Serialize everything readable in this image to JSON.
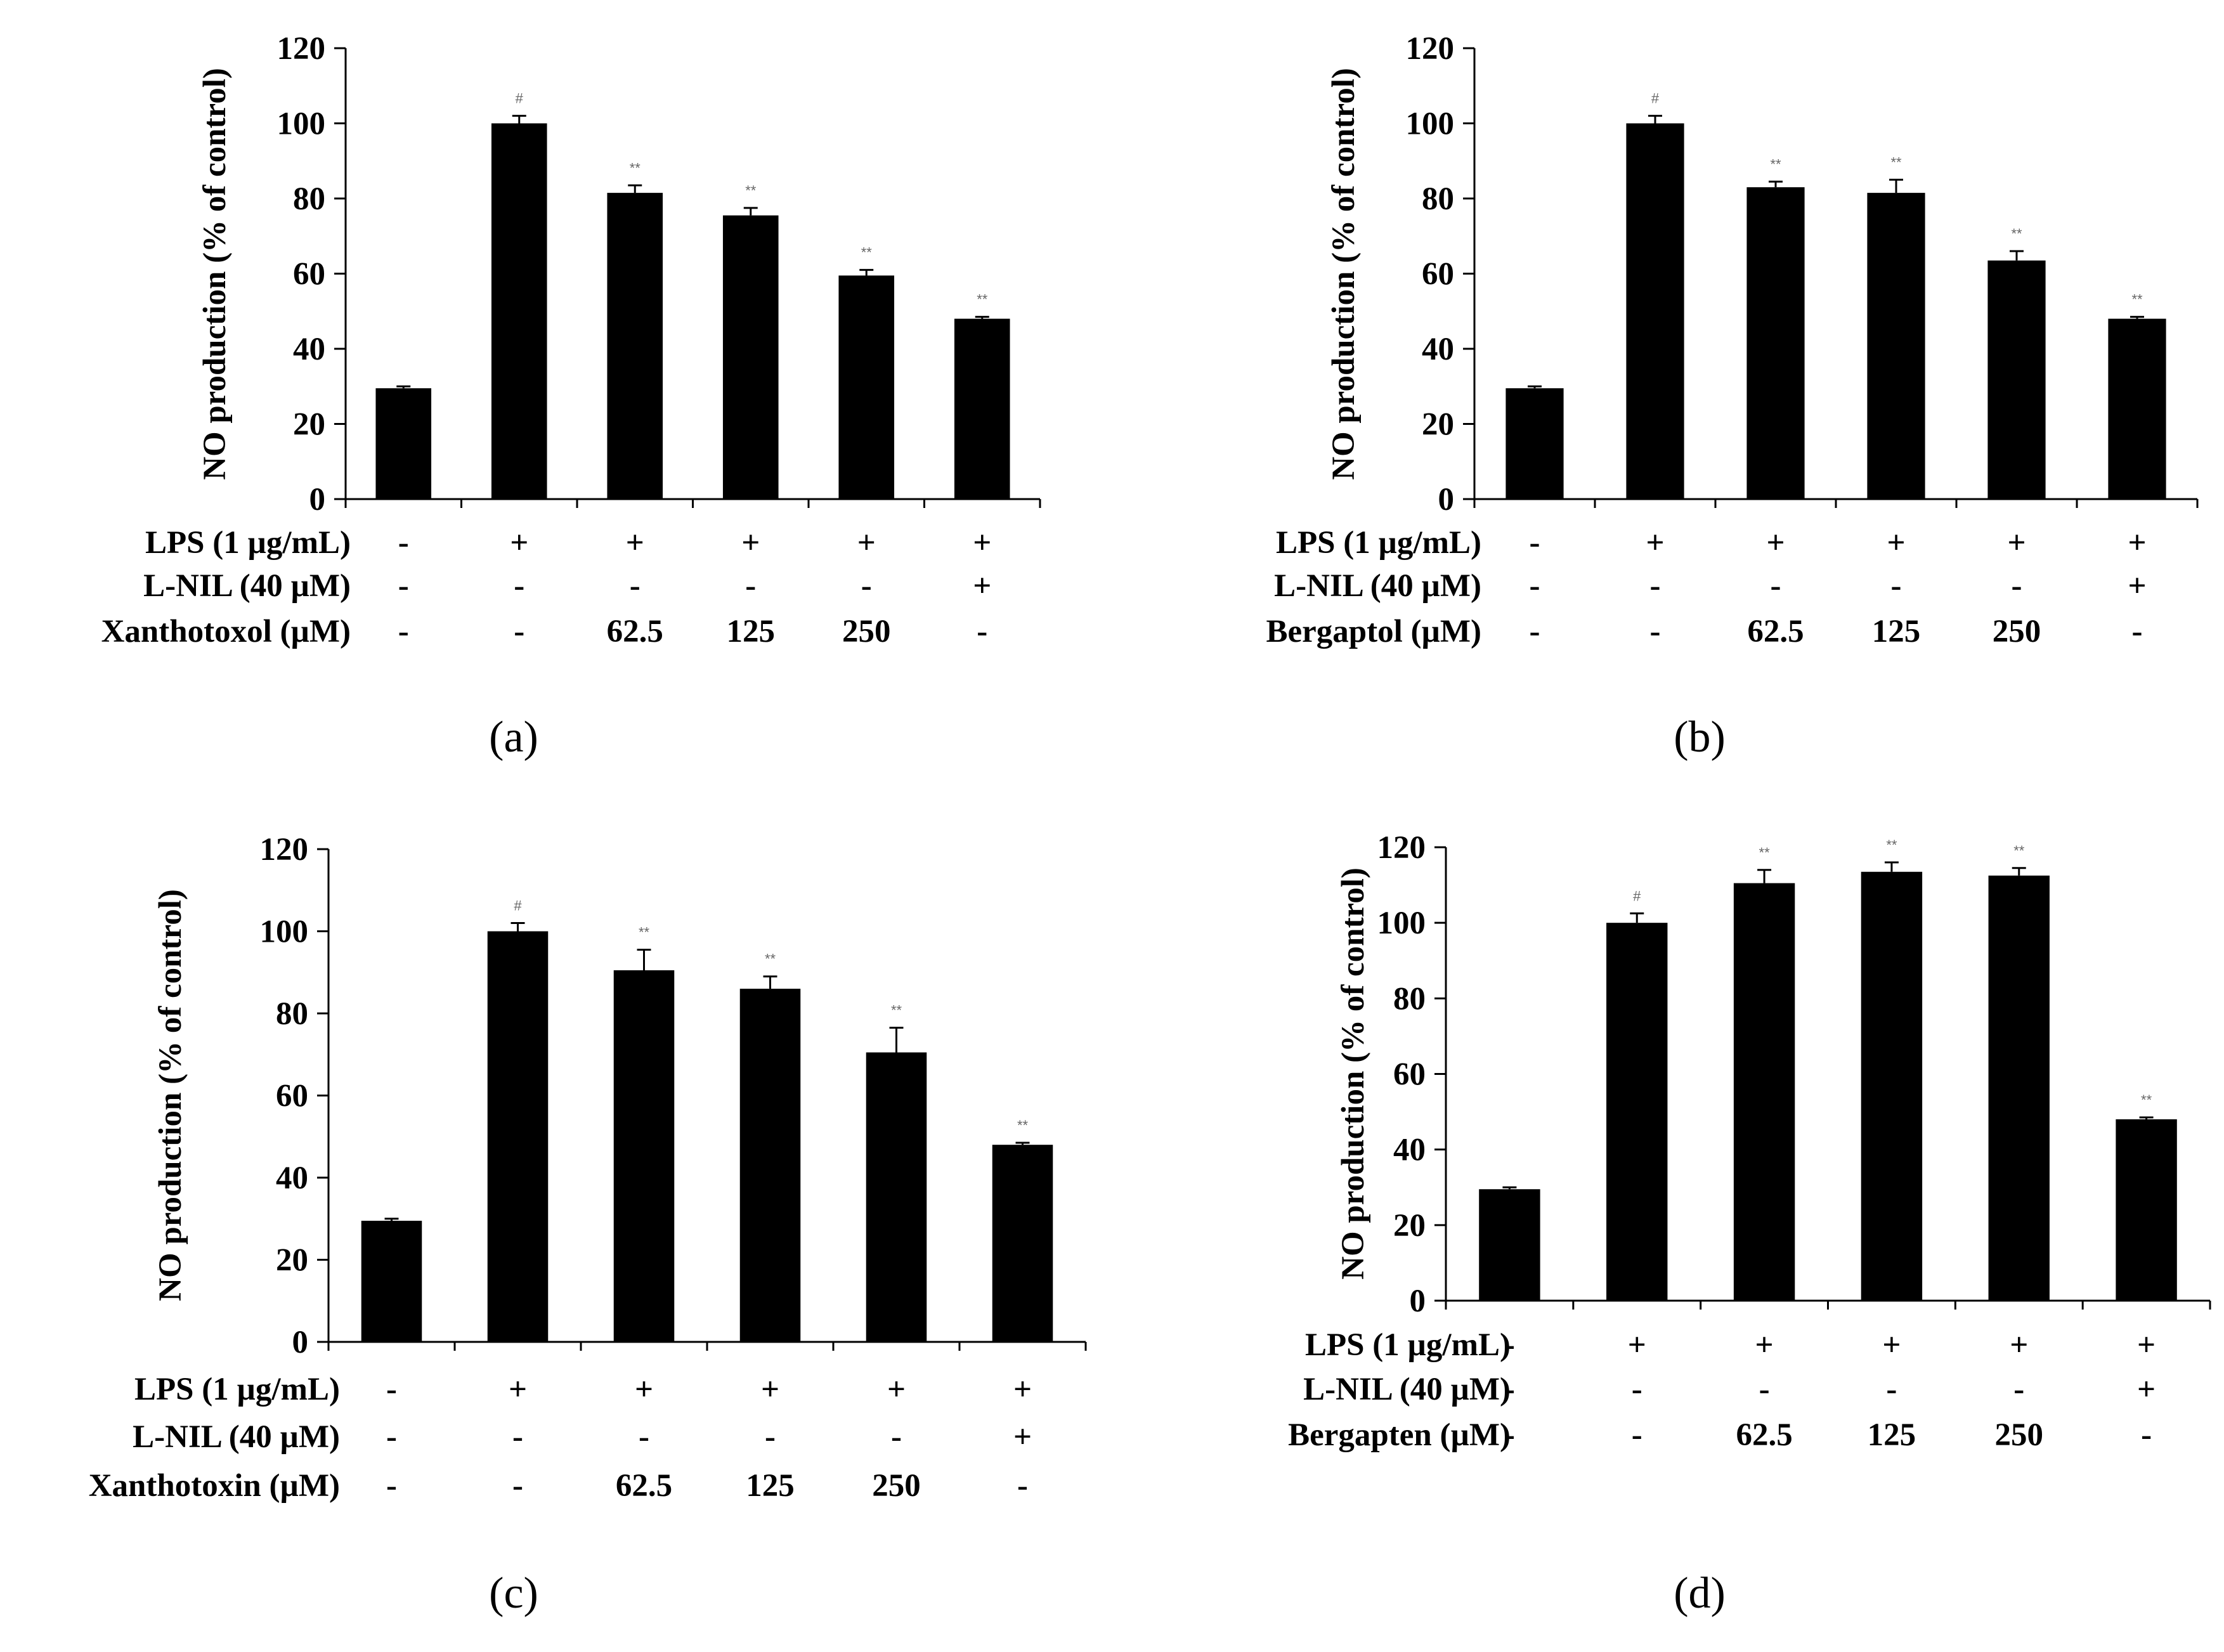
{
  "colors": {
    "bar": "#000000",
    "axis": "#000000",
    "annotation": "#666666",
    "background": "#ffffff"
  },
  "chart_data": [
    {
      "panel": "(a)",
      "type": "bar",
      "ylabel": "NO production (% of control)",
      "ylim": [
        0,
        120
      ],
      "yticks": [
        "0",
        "20",
        "40",
        "60",
        "80",
        "100",
        "120"
      ],
      "values": [
        29.5,
        100,
        81.5,
        75.5,
        59.5,
        48
      ],
      "errors": [
        0.5,
        2,
        2,
        2,
        1.5,
        0.5
      ],
      "significance": [
        "",
        "#",
        "**",
        "**",
        "**",
        "**"
      ],
      "rows": [
        {
          "label": "LPS (1 µg/mL)",
          "cells": [
            "-",
            "+",
            "+",
            "+",
            "+",
            "+"
          ]
        },
        {
          "label": "L-NIL (40 µM)",
          "cells": [
            "-",
            "-",
            "-",
            "-",
            "-",
            "+"
          ]
        },
        {
          "label": "Xanthotoxol (µM)",
          "cells": [
            "-",
            "-",
            "62.5",
            "125",
            "250",
            "-"
          ]
        }
      ]
    },
    {
      "panel": "(b)",
      "type": "bar",
      "ylabel": "NO production (% of control)",
      "ylim": [
        0,
        120
      ],
      "yticks": [
        "0",
        "20",
        "40",
        "60",
        "80",
        "100",
        "120"
      ],
      "values": [
        29.5,
        100,
        83,
        81.5,
        63.5,
        48
      ],
      "errors": [
        0.5,
        2,
        1.5,
        3.5,
        2.5,
        0.5
      ],
      "significance": [
        "",
        "#",
        "**",
        "**",
        "**",
        "**"
      ],
      "rows": [
        {
          "label": "LPS (1 µg/mL)",
          "cells": [
            "-",
            "+",
            "+",
            "+",
            "+",
            "+"
          ]
        },
        {
          "label": "L-NIL (40 µM)",
          "cells": [
            "-",
            "-",
            "-",
            "-",
            "-",
            "+"
          ]
        },
        {
          "label": "Bergaptol (µM)",
          "cells": [
            "-",
            "-",
            "62.5",
            "125",
            "250",
            "-"
          ]
        }
      ]
    },
    {
      "panel": "(c)",
      "type": "bar",
      "ylabel": "NO production (% of control)",
      "ylim": [
        0,
        120
      ],
      "yticks": [
        "0",
        "20",
        "40",
        "60",
        "80",
        "100",
        "120"
      ],
      "values": [
        29.5,
        100,
        90.5,
        86,
        70.5,
        48
      ],
      "errors": [
        0.5,
        2,
        5,
        3,
        6,
        0.5
      ],
      "significance": [
        "",
        "#",
        "**",
        "**",
        "**",
        "**"
      ],
      "rows": [
        {
          "label": "LPS (1 µg/mL)",
          "cells": [
            "-",
            "+",
            "+",
            "+",
            "+",
            "+"
          ]
        },
        {
          "label": "L-NIL (40 µM)",
          "cells": [
            "-",
            "-",
            "-",
            "-",
            "-",
            "+"
          ]
        },
        {
          "label": "Xanthotoxin (µM)",
          "cells": [
            "-",
            "-",
            "62.5",
            "125",
            "250",
            "-"
          ]
        }
      ]
    },
    {
      "panel": "(d)",
      "type": "bar",
      "ylabel": "NO production (% of control)",
      "ylim": [
        0,
        120
      ],
      "yticks": [
        "0",
        "20",
        "40",
        "60",
        "80",
        "100",
        "120"
      ],
      "values": [
        29.5,
        100,
        110.5,
        113.5,
        112.5,
        48
      ],
      "errors": [
        0.5,
        2.5,
        3.5,
        2.5,
        2,
        0.5
      ],
      "significance": [
        "",
        "#",
        "**",
        "**",
        "**",
        "**"
      ],
      "rows": [
        {
          "label": "LPS (1 µg/mL)",
          "cells": [
            "-",
            "+",
            "+",
            "+",
            "+",
            "+"
          ]
        },
        {
          "label": "L-NIL (40 µM)",
          "cells": [
            "-",
            "-",
            "-",
            "-",
            "-",
            "+"
          ]
        },
        {
          "label": "Bergapten (µM)",
          "cells": [
            "-",
            "-",
            "62.5",
            "125",
            "250",
            "-"
          ]
        }
      ]
    }
  ]
}
